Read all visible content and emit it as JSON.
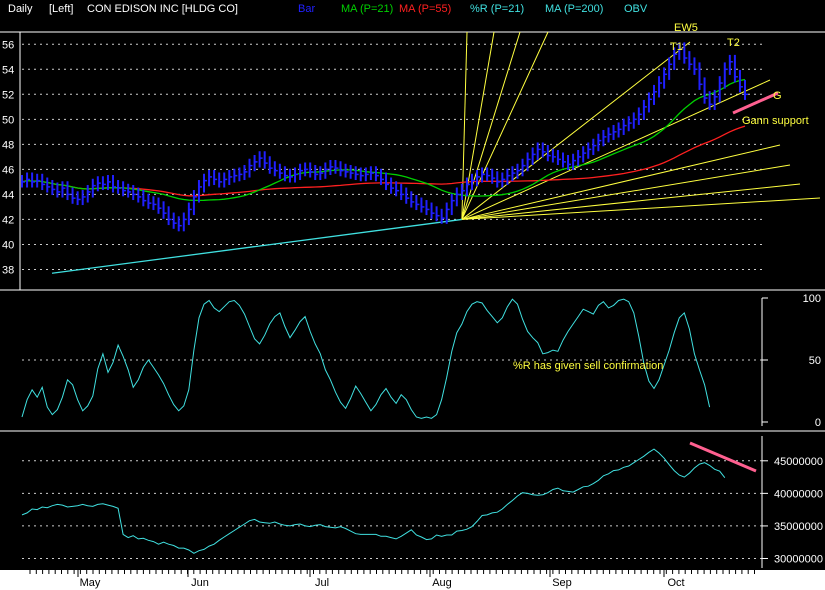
{
  "header": {
    "period": "Daily",
    "axis_side": "[Left]",
    "symbol": "CON EDISON INC [HLDG CO]",
    "legend": [
      {
        "label": "Bar",
        "color": "#2020ff"
      },
      {
        "label": "MA (P=21)",
        "color": "#00d000"
      },
      {
        "label": "MA (P=55)",
        "color": "#ff2020"
      },
      {
        "label": "%R (P=21)",
        "color": "#40e0e0"
      },
      {
        "label": "MA (P=200)",
        "color": "#40e0e0"
      },
      {
        "label": "OBV",
        "color": "#40e0e0"
      }
    ]
  },
  "colors": {
    "background": "#000000",
    "bars": "#2020ff",
    "ma21": "#00d000",
    "ma55": "#ff2020",
    "ma200": "#40e0e0",
    "gann_fan": "#ffff40",
    "highlight_trendline": "#ff6090",
    "annotation": "#ffff40",
    "grid": "#ffffff",
    "axis_band": "#ffffff"
  },
  "annotations": {
    "ew5": "EW5",
    "t1": "T1",
    "t2": "T2",
    "g": "G",
    "gann_support": "Gann support",
    "williams_note": "%R has given sell confirmation"
  },
  "chart_data": [
    {
      "type": "bar",
      "name": "price",
      "ylim": [
        37,
        56.5
      ],
      "yticks": [
        38,
        40,
        42,
        44,
        46,
        48,
        50,
        52,
        54,
        56
      ],
      "x_labels": [
        "May",
        "Jun",
        "Jul",
        "Aug",
        "Sep",
        "Oct"
      ],
      "grid": true,
      "closes": [
        45.0,
        45.2,
        45.0,
        45.1,
        44.8,
        44.6,
        44.4,
        44.2,
        44.5,
        44.0,
        43.7,
        43.6,
        43.8,
        44.2,
        44.7,
        44.9,
        44.8,
        45.0,
        44.6,
        44.5,
        44.3,
        44.2,
        44.0,
        43.8,
        43.5,
        43.3,
        43.2,
        42.9,
        42.5,
        42.0,
        41.7,
        41.5,
        42.0,
        42.8,
        43.8,
        44.6,
        45.1,
        45.4,
        45.2,
        45.0,
        45.2,
        45.4,
        45.5,
        45.6,
        45.8,
        46.3,
        46.6,
        46.9,
        46.5,
        46.1,
        45.9,
        45.7,
        45.5,
        45.4,
        45.6,
        45.9,
        46.0,
        45.8,
        45.6,
        45.7,
        46.0,
        46.2,
        46.1,
        45.9,
        45.8,
        45.7,
        45.6,
        45.5,
        45.6,
        45.7,
        45.5,
        45.2,
        44.8,
        44.5,
        44.3,
        44.0,
        43.7,
        43.4,
        43.2,
        43.0,
        42.8,
        42.5,
        42.3,
        42.1,
        42.8,
        43.5,
        44.0,
        44.3,
        44.8,
        45.1,
        45.4,
        45.6,
        45.5,
        45.3,
        45.0,
        45.2,
        45.5,
        45.7,
        45.9,
        46.3,
        46.8,
        47.2,
        47.6,
        47.4,
        47.1,
        47.0,
        46.8,
        46.6,
        46.4,
        46.7,
        47.0,
        47.3,
        47.6,
        47.9,
        48.3,
        48.6,
        48.8,
        49.0,
        49.2,
        49.5,
        49.7,
        50.0,
        50.4,
        51.0,
        51.6,
        52.2,
        52.9,
        53.6,
        54.4,
        55.2,
        55.6,
        54.9,
        54.4,
        54.0,
        52.8,
        51.7,
        51.2,
        51.8,
        52.9,
        54.0,
        54.6,
        53.4,
        52.6,
        52.0
      ]
    },
    {
      "type": "line",
      "name": "williams_r",
      "ylim": [
        0,
        100
      ],
      "yticks": [
        0,
        50,
        100
      ],
      "grid": true,
      "values": [
        4,
        18,
        26,
        20,
        28,
        12,
        6,
        10,
        20,
        34,
        30,
        18,
        9,
        13,
        21,
        43,
        55,
        40,
        48,
        62,
        53,
        42,
        28,
        34,
        44,
        50,
        44,
        38,
        31,
        22,
        14,
        9,
        13,
        26,
        58,
        84,
        95,
        98,
        92,
        89,
        93,
        97,
        98,
        94,
        87,
        77,
        67,
        63,
        70,
        79,
        85,
        88,
        77,
        68,
        74,
        81,
        85,
        73,
        63,
        55,
        42,
        34,
        24,
        16,
        11,
        19,
        29,
        23,
        16,
        9,
        14,
        22,
        27,
        20,
        15,
        22,
        18,
        10,
        4,
        3,
        4,
        3,
        6,
        18,
        36,
        57,
        72,
        79,
        89,
        95,
        97,
        96,
        90,
        85,
        80,
        84,
        93,
        99,
        95,
        83,
        73,
        68,
        64,
        55,
        56,
        58,
        57,
        66,
        73,
        79,
        85,
        91,
        89,
        87,
        94,
        97,
        92,
        94,
        98,
        99,
        97,
        88,
        69,
        47,
        33,
        27,
        34,
        46,
        58,
        72,
        84,
        88,
        75,
        55,
        42,
        30,
        12
      ]
    },
    {
      "type": "line",
      "name": "obv",
      "ylim": [
        29000000,
        48500000
      ],
      "yticks": [
        30000000,
        35000000,
        40000000,
        45000000
      ],
      "ytick_labels": [
        "30000000",
        "35000000",
        "40000000",
        "45000000"
      ],
      "grid": true,
      "values": [
        36700000,
        37000000,
        37600000,
        37500000,
        37900000,
        37800000,
        38100000,
        38300000,
        38200000,
        37900000,
        38000000,
        38100000,
        38300000,
        38100000,
        38000000,
        38300000,
        38400000,
        38200000,
        38000000,
        37700000,
        33700000,
        33200000,
        33500000,
        33000000,
        33100000,
        32800000,
        32600000,
        32200000,
        32500000,
        32200000,
        32000000,
        31600000,
        31600000,
        31300000,
        30800000,
        31200000,
        31400000,
        31900000,
        32200000,
        32800000,
        33300000,
        33800000,
        34300000,
        34800000,
        35300000,
        35800000,
        36000000,
        35600000,
        35500000,
        35400000,
        35600000,
        35300000,
        35100000,
        35000000,
        35200000,
        35300000,
        35000000,
        34900000,
        35100000,
        35200000,
        34900000,
        34800000,
        34700000,
        34900000,
        34600000,
        34200000,
        33800000,
        33700000,
        33700000,
        33700000,
        33700000,
        33400000,
        33400000,
        33200000,
        33000000,
        33400000,
        33900000,
        34400000,
        33600000,
        33300000,
        32900000,
        33000000,
        33600000,
        33400000,
        33600000,
        33600000,
        34200000,
        34300000,
        34500000,
        34900000,
        35700000,
        36600000,
        36700000,
        37000000,
        37100000,
        37600000,
        38300000,
        38900000,
        39600000,
        40100000,
        40000000,
        39800000,
        39700000,
        39800000,
        40100000,
        40600000,
        40800000,
        40400000,
        40300000,
        40200000,
        40600000,
        41000000,
        41100000,
        41500000,
        42000000,
        42700000,
        43000000,
        43500000,
        43600000,
        44000000,
        44200000,
        44700000,
        45200000,
        45700000,
        46300000,
        46800000,
        46200000,
        45400000,
        44400000,
        43500000,
        42800000,
        42500000,
        43100000,
        43900000,
        44500000,
        44700000,
        44300000,
        43700000,
        43400000,
        42400000
      ]
    }
  ]
}
